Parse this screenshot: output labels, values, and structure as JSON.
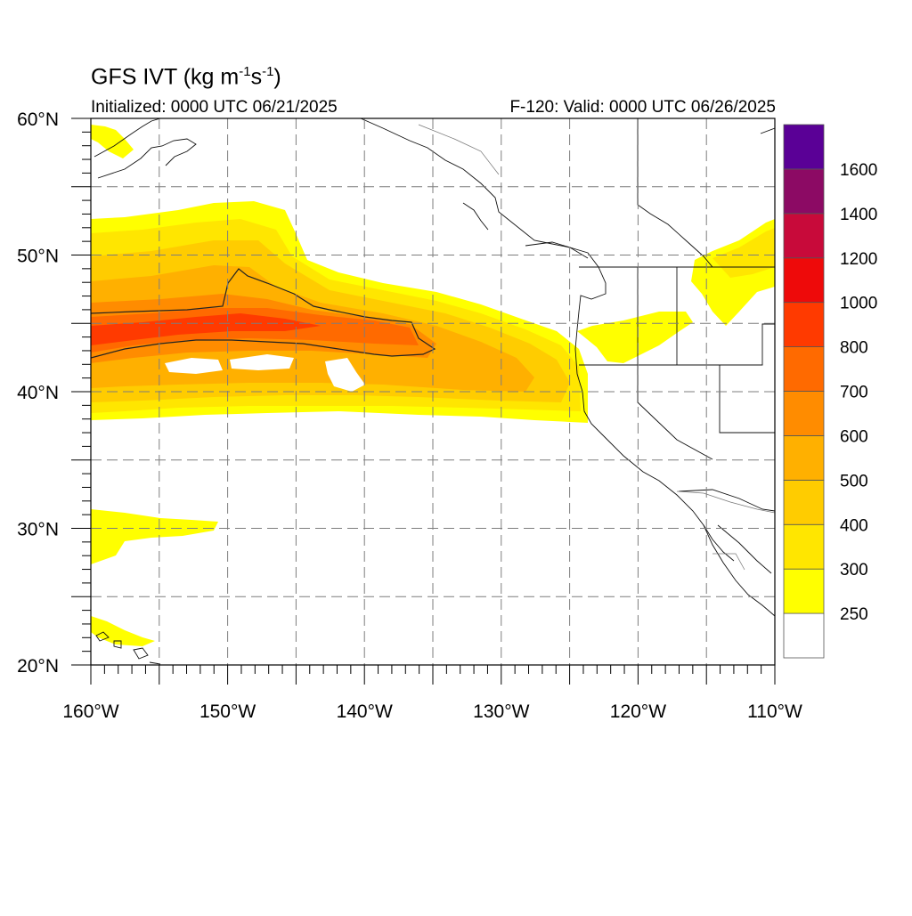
{
  "header": {
    "title_main": "GFS IVT (kg m",
    "title_sup1": "-1",
    "title_mid": "s",
    "title_sup2": "-1",
    "title_end": ")",
    "init_text": "Initialized: 0000 UTC 06/21/2025",
    "valid_text": "F-120: Valid: 0000 UTC 06/26/2025"
  },
  "map": {
    "lon_range": [
      -160,
      -110
    ],
    "lat_range": [
      20,
      60
    ],
    "lon_labels": [
      {
        "lon": -160,
        "label": "160°W"
      },
      {
        "lon": -150,
        "label": "150°W"
      },
      {
        "lon": -140,
        "label": "140°W"
      },
      {
        "lon": -130,
        "label": "130°W"
      },
      {
        "lon": -120,
        "label": "120°W"
      },
      {
        "lon": -110,
        "label": "110°W"
      }
    ],
    "lat_labels": [
      {
        "lat": 60,
        "label": "60°N"
      },
      {
        "lat": 50,
        "label": "50°N"
      },
      {
        "lat": 40,
        "label": "40°N"
      },
      {
        "lat": 30,
        "label": "30°N"
      },
      {
        "lat": 20,
        "label": "20°N"
      }
    ],
    "contour_level": 500
  },
  "colorbar": {
    "levels": [
      {
        "label": "",
        "color": "#ffffff"
      },
      {
        "label": "250",
        "color": "#ffff00"
      },
      {
        "label": "300",
        "color": "#ffe600"
      },
      {
        "label": "400",
        "color": "#ffcc00"
      },
      {
        "label": "500",
        "color": "#ffb000"
      },
      {
        "label": "600",
        "color": "#ff8c00"
      },
      {
        "label": "700",
        "color": "#ff6a00"
      },
      {
        "label": "800",
        "color": "#ff3a00"
      },
      {
        "label": "1000",
        "color": "#ee0a0a"
      },
      {
        "label": "1200",
        "color": "#c80a3a"
      },
      {
        "label": "1400",
        "color": "#8c0a64"
      },
      {
        "label": "1600",
        "color": "#5a0096"
      }
    ]
  }
}
